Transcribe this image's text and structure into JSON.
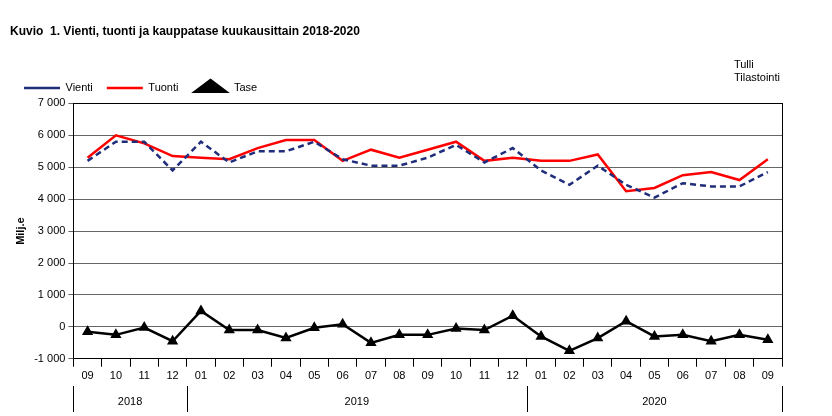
{
  "chart_data": {
    "type": "line",
    "title": "Kuvio  1. Vienti, tuonti ja kauppatase kuukausittain 2018-2020",
    "annotations": [
      "Tulli",
      "Tilastointi"
    ],
    "y_label": "Milj.e",
    "categories": [
      "09",
      "10",
      "11",
      "12",
      "01",
      "02",
      "03",
      "04",
      "05",
      "06",
      "07",
      "08",
      "09",
      "10",
      "11",
      "12",
      "01",
      "02",
      "03",
      "04",
      "05",
      "06",
      "07",
      "08",
      "09"
    ],
    "groups": [
      {
        "label": "2018",
        "count": 4
      },
      {
        "label": "2019",
        "count": 12
      },
      {
        "label": "2020",
        "count": 9
      }
    ],
    "series": [
      {
        "name": "Vienti",
        "color": "#1f2d7a",
        "line_style": "dashed",
        "marker": "none",
        "values": [
          5200,
          5800,
          5800,
          4900,
          5800,
          5150,
          5500,
          5500,
          5800,
          5250,
          5050,
          5050,
          5300,
          5700,
          5150,
          5600,
          4900,
          4450,
          5050,
          4450,
          4050,
          4500,
          4400,
          4400,
          4850
        ]
      },
      {
        "name": "Tuonti",
        "color": "#ff0000",
        "line_style": "solid",
        "marker": "none",
        "values": [
          5300,
          6000,
          5750,
          5350,
          5300,
          5250,
          5600,
          5850,
          5850,
          5200,
          5550,
          5300,
          5550,
          5800,
          5200,
          5300,
          5200,
          5200,
          5400,
          4250,
          4350,
          4750,
          4850,
          4600,
          5250
        ]
      },
      {
        "name": "Tase",
        "color": "#000000",
        "line_style": "solid",
        "marker": "triangle",
        "values": [
          -150,
          -250,
          -20,
          -450,
          500,
          -100,
          -100,
          -350,
          -30,
          80,
          -500,
          -250,
          -250,
          -50,
          -100,
          350,
          -300,
          -750,
          -350,
          180,
          -300,
          -250,
          -450,
          -250,
          -400
        ]
      }
    ],
    "ylim": [
      -1000,
      7000
    ],
    "yticks": [
      {
        "value": -1000,
        "label": "-1 000"
      },
      0,
      {
        "value": 1000,
        "label": "1 000"
      },
      {
        "value": 2000,
        "label": "2 000"
      },
      {
        "value": 3000,
        "label": "3 000"
      },
      {
        "value": 4000,
        "label": "4 000"
      },
      {
        "value": 5000,
        "label": "5 000"
      },
      {
        "value": 6000,
        "label": "6 000"
      },
      {
        "value": 7000,
        "label": "7 000"
      }
    ],
    "grid": true,
    "legend": "top-left"
  }
}
